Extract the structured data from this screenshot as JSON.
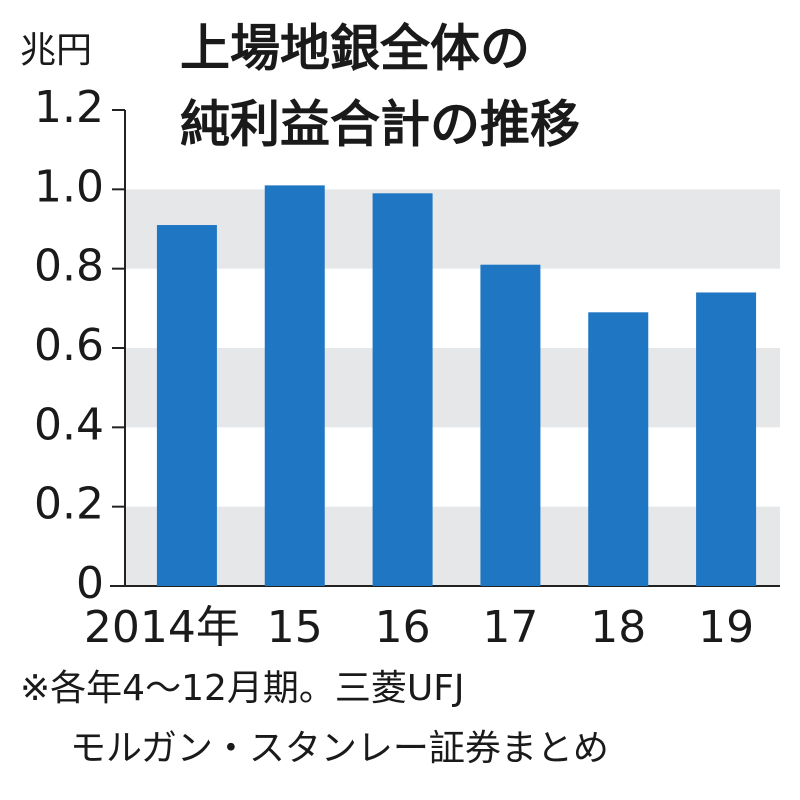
{
  "chart_data": {
    "type": "bar",
    "title_lines": [
      "上場地銀全体の",
      "純利益合計の推移"
    ],
    "y_unit": "兆円",
    "categories": [
      "2014年",
      "15",
      "16",
      "17",
      "18",
      "19"
    ],
    "values": [
      0.91,
      1.01,
      0.99,
      0.81,
      0.69,
      0.74
    ],
    "color": "#1f77c4",
    "ylim": [
      0,
      1.2
    ],
    "yticks": [
      0,
      0.2,
      0.4,
      0.6,
      {
        "value": 0.8,
        "label": "0.8"
      },
      {
        "value": 1,
        "label": "1.0"
      },
      1.2
    ],
    "grid": "bands",
    "band_color": "#e6e7e9",
    "notes": [
      "※各年4〜12月期。三菱UFJ",
      "モルガン・スタンレー証券まとめ"
    ]
  }
}
